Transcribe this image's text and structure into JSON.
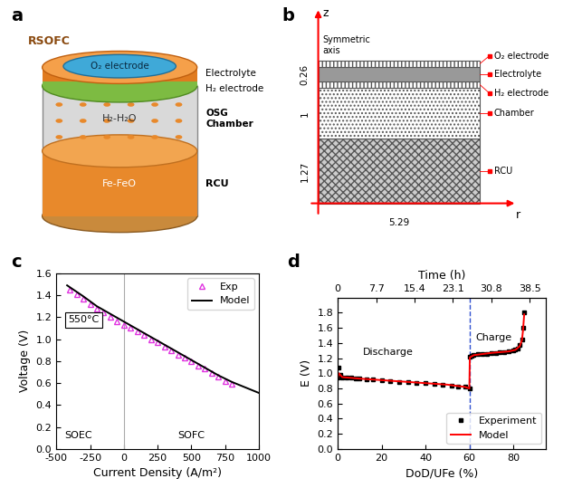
{
  "diagrams": [
    {
      "title": "a",
      "labels": {
        "cell": "RSOFC",
        "o2": "O₂ electrode",
        "electrolyte": "Electrolyte",
        "h2": "H₂ electrode",
        "gas": "H₂-H₂O",
        "chamber": "OSG\nChamber",
        "metal": "Fe-FeO",
        "unit": "RCU"
      }
    },
    {
      "title": "b",
      "axes": {
        "z": "z",
        "r": "r",
        "symmetric": "Symmetric\naxis"
      },
      "layers": [
        "O₂ electrode",
        "Electrolyte",
        "H₂ electrode",
        "Chamber",
        "RCU"
      ],
      "dimensions": {
        "cell_height": 0.26,
        "chamber_height": 1,
        "rcu_height": 1.27,
        "radius": 5.29
      }
    }
  ],
  "chart_data": [
    {
      "type": "line",
      "title": "c",
      "x_label": "Current Density (A/m²)",
      "y_label": "Voltage (V)",
      "xlim": [
        -500,
        1000
      ],
      "xticks": [
        -500,
        -250,
        0,
        250,
        500,
        750,
        1000
      ],
      "ylim": [
        0,
        1.6
      ],
      "yticks": [
        {
          "value": 0,
          "label": "0.0"
        },
        0.2,
        0.4,
        0.6,
        0.8,
        {
          "value": 1,
          "label": "1.0"
        },
        1.2,
        1.4,
        1.6
      ],
      "grid": false,
      "legend": "upper right",
      "reference_x": 0,
      "annotations": [
        "550°C",
        "SOEC",
        "SOFC"
      ],
      "series": [
        {
          "name": "Exp",
          "type": "scatter",
          "color": "#e033e0",
          "marker": "triangle",
          "x": [
            -400,
            -350,
            -300,
            -250,
            -200,
            -150,
            -100,
            -50,
            0,
            50,
            100,
            150,
            200,
            250,
            300,
            350,
            400,
            450,
            500,
            550,
            600,
            650,
            700,
            750,
            800
          ],
          "values": [
            1.45,
            1.41,
            1.37,
            1.32,
            1.28,
            1.24,
            1.2,
            1.16,
            1.13,
            1.1,
            1.07,
            1.04,
            1.0,
            0.97,
            0.93,
            0.9,
            0.86,
            0.83,
            0.8,
            0.76,
            0.73,
            0.69,
            0.66,
            0.62,
            0.59
          ]
        },
        {
          "name": "Model",
          "type": "line",
          "color": "#000000",
          "line_style": "solid",
          "x": [
            -420,
            -300,
            -200,
            -100,
            0,
            100,
            200,
            300,
            400,
            500,
            600,
            700,
            800,
            900,
            1000
          ],
          "values": [
            1.49,
            1.39,
            1.3,
            1.23,
            1.16,
            1.09,
            1.02,
            0.95,
            0.88,
            0.81,
            0.74,
            0.67,
            0.61,
            0.56,
            0.51
          ]
        }
      ]
    },
    {
      "type": "line",
      "title": "d",
      "x_label": "DoD/UFe (%)",
      "y_label": "E (V)",
      "x2_label": "Time (h)",
      "xlim": [
        0,
        95
      ],
      "xticks": [
        0,
        20,
        40,
        60,
        80
      ],
      "x2lim": [
        0,
        41.8
      ],
      "x2ticks": [
        0,
        7.7,
        15.4,
        23.1,
        30.8,
        38.5
      ],
      "ylim": [
        0,
        2.0
      ],
      "yticks": [
        {
          "value": 0,
          "label": "0.0"
        },
        0.2,
        0.4,
        0.6,
        0.8,
        {
          "value": 1,
          "label": "1.0"
        },
        1.2,
        1.4,
        1.6,
        1.8
      ],
      "grid": false,
      "legend": "lower right",
      "reference_x": 60,
      "annotations": [
        "Discharge",
        "Charge"
      ],
      "series": [
        {
          "name": "Experiment",
          "type": "scatter",
          "color": "#000000",
          "marker": "square",
          "x": [
            0,
            0.5,
            1,
            2,
            4,
            6,
            8,
            10,
            13,
            16,
            20,
            24,
            28,
            32,
            36,
            40,
            44,
            48,
            52,
            55,
            58,
            60,
            60.2,
            61,
            62,
            64,
            66,
            68,
            70,
            72,
            74,
            76,
            78,
            80,
            81,
            82,
            83,
            84,
            84.5,
            85
          ],
          "values": [
            0.95,
            1.08,
            0.98,
            0.95,
            0.94,
            0.94,
            0.93,
            0.93,
            0.92,
            0.92,
            0.91,
            0.9,
            0.89,
            0.88,
            0.87,
            0.87,
            0.86,
            0.85,
            0.84,
            0.83,
            0.82,
            0.8,
            1.22,
            1.23,
            1.24,
            1.25,
            1.26,
            1.26,
            1.27,
            1.27,
            1.28,
            1.28,
            1.29,
            1.3,
            1.31,
            1.33,
            1.37,
            1.45,
            1.6,
            1.8
          ]
        },
        {
          "name": "Model",
          "type": "line",
          "color": "#ff0000",
          "line_style": "solid",
          "x": [
            0,
            0.5,
            2,
            10,
            20,
            30,
            40,
            50,
            58,
            60,
            60.2,
            62,
            70,
            78,
            81,
            83,
            84,
            84.5,
            85
          ],
          "values": [
            0.94,
            1.0,
            0.95,
            0.93,
            0.91,
            0.89,
            0.87,
            0.85,
            0.82,
            0.8,
            1.21,
            1.24,
            1.27,
            1.29,
            1.31,
            1.36,
            1.44,
            1.58,
            1.78
          ]
        }
      ]
    }
  ]
}
